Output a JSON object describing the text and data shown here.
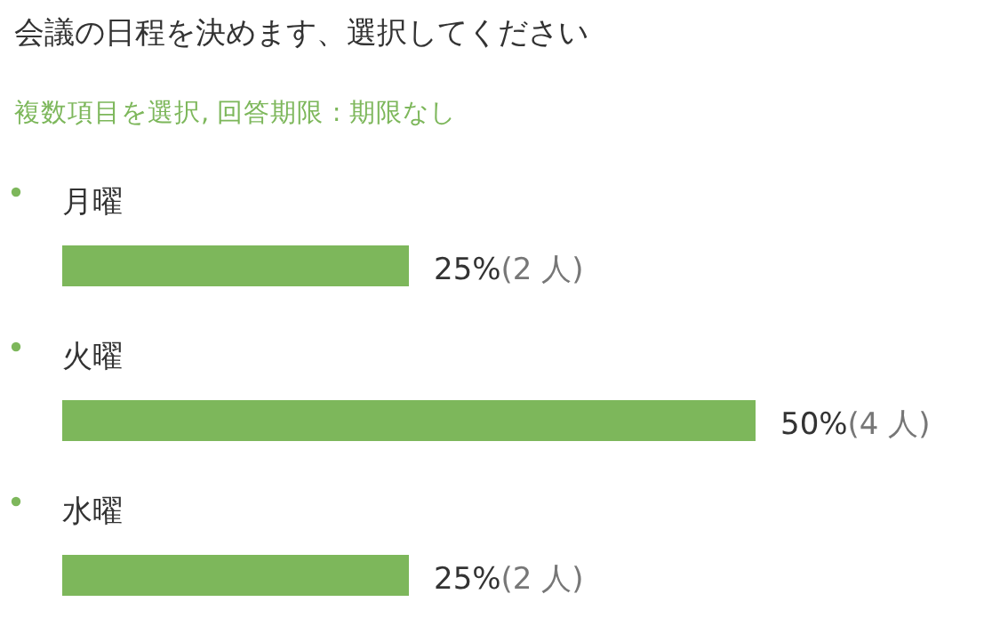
{
  "chart_data": {
    "type": "bar",
    "orientation": "horizontal",
    "title": "会議の日程を決めます、選択してください",
    "subtitle": "複数項目を選択, 回答期限 : 期限なし",
    "categories": [
      "月曜",
      "火曜",
      "水曜"
    ],
    "values": [
      25,
      50,
      25
    ],
    "color": "#7db75b",
    "value_labels": [
      "25%(2 人)",
      "50%(4 人)",
      "25%(2 人)"
    ]
  }
}
